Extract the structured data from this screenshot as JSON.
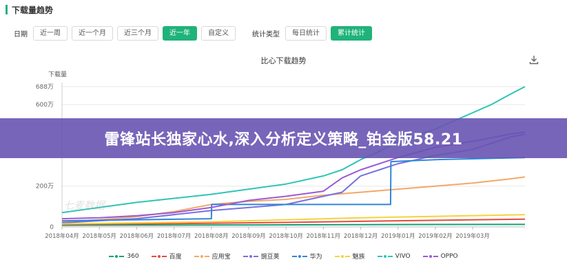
{
  "header": {
    "title": "下载量趋势"
  },
  "filters": {
    "date_label": "日期",
    "date_buttons": [
      "近一周",
      "近一个月",
      "近三个月",
      "近一年",
      "自定义"
    ],
    "date_active": "近一年",
    "stat_label": "统计类型",
    "stat_buttons": [
      "每日统计",
      "累计统计"
    ],
    "stat_active": "累计统计"
  },
  "icons": {
    "download": "download-icon"
  },
  "overlay": {
    "banner_text": "雷锋站长独家心水,深入分析定义策略_铂金版58.21"
  },
  "watermark": "七麦数据",
  "colors": {
    "accent": "#1fb37a",
    "banner": "#6854b2"
  },
  "chart_data": {
    "type": "line",
    "title": "比心下载趋势",
    "ylabel": "下载量",
    "ylim": [
      0,
      688
    ],
    "yticks": [
      0,
      200,
      600,
      688
    ],
    "ytick_labels": [
      "0",
      "200万",
      "600万",
      "688万"
    ],
    "xlim": [
      0,
      12.4
    ],
    "x_categories": [
      "2018年04月",
      "2018年05月",
      "2018年06月",
      "2018年07月",
      "2018年08月",
      "2018年09月",
      "2018年10月",
      "2018年11月",
      "2018年12月",
      "2019年01月",
      "2019年02月",
      "2019年03月"
    ],
    "series": [
      {
        "name": "360",
        "color": "#13a07a",
        "x": [
          0,
          4,
          8,
          12.4
        ],
        "y": [
          8,
          9,
          11,
          12
        ]
      },
      {
        "name": "百度",
        "color": "#e84a3c",
        "x": [
          0,
          3,
          6,
          9,
          12.4
        ],
        "y": [
          12,
          16,
          22,
          30,
          38
        ]
      },
      {
        "name": "应用宝",
        "color": "#f4a766",
        "x": [
          0,
          1,
          2,
          3,
          4,
          5,
          6,
          7,
          8,
          9,
          10,
          11,
          12,
          12.4
        ],
        "y": [
          25,
          35,
          50,
          75,
          110,
          125,
          135,
          155,
          170,
          185,
          200,
          215,
          235,
          245
        ]
      },
      {
        "name": "豌豆荚",
        "color": "#7a6fe0",
        "x": [
          0,
          2,
          4,
          6,
          7,
          7.5,
          8,
          8.5,
          9,
          9.5,
          10,
          10.5,
          11,
          11.5,
          12,
          12.4
        ],
        "y": [
          20,
          40,
          80,
          110,
          150,
          170,
          250,
          280,
          310,
          330,
          350,
          365,
          380,
          410,
          440,
          455
        ]
      },
      {
        "name": "华为",
        "color": "#2d86d9",
        "x": [
          0,
          4,
          4.01,
          8.8,
          8.81,
          10,
          12.4
        ],
        "y": [
          30,
          40,
          110,
          110,
          320,
          330,
          340
        ]
      },
      {
        "name": "魅族",
        "color": "#f2d43c",
        "x": [
          0,
          4,
          8,
          12.4
        ],
        "y": [
          15,
          25,
          45,
          60
        ]
      },
      {
        "name": "VIVO",
        "color": "#2ec4b6",
        "x": [
          0,
          1,
          2,
          3,
          4,
          5,
          6,
          7,
          7.5,
          8,
          8.5,
          9,
          9.5,
          10,
          10.5,
          11,
          11.5,
          12,
          12.4
        ],
        "y": [
          70,
          95,
          120,
          140,
          160,
          185,
          210,
          250,
          280,
          330,
          370,
          420,
          450,
          480,
          520,
          560,
          600,
          650,
          688
        ]
      },
      {
        "name": "OPPO",
        "color": "#9b59d6",
        "x": [
          0,
          1,
          2,
          3,
          4,
          5,
          6,
          7,
          7.5,
          8,
          9,
          10,
          11,
          12,
          12.4
        ],
        "y": [
          40,
          45,
          55,
          70,
          95,
          130,
          150,
          175,
          240,
          280,
          340,
          390,
          420,
          455,
          465
        ]
      }
    ],
    "legend_position": "bottom",
    "grid": true
  }
}
